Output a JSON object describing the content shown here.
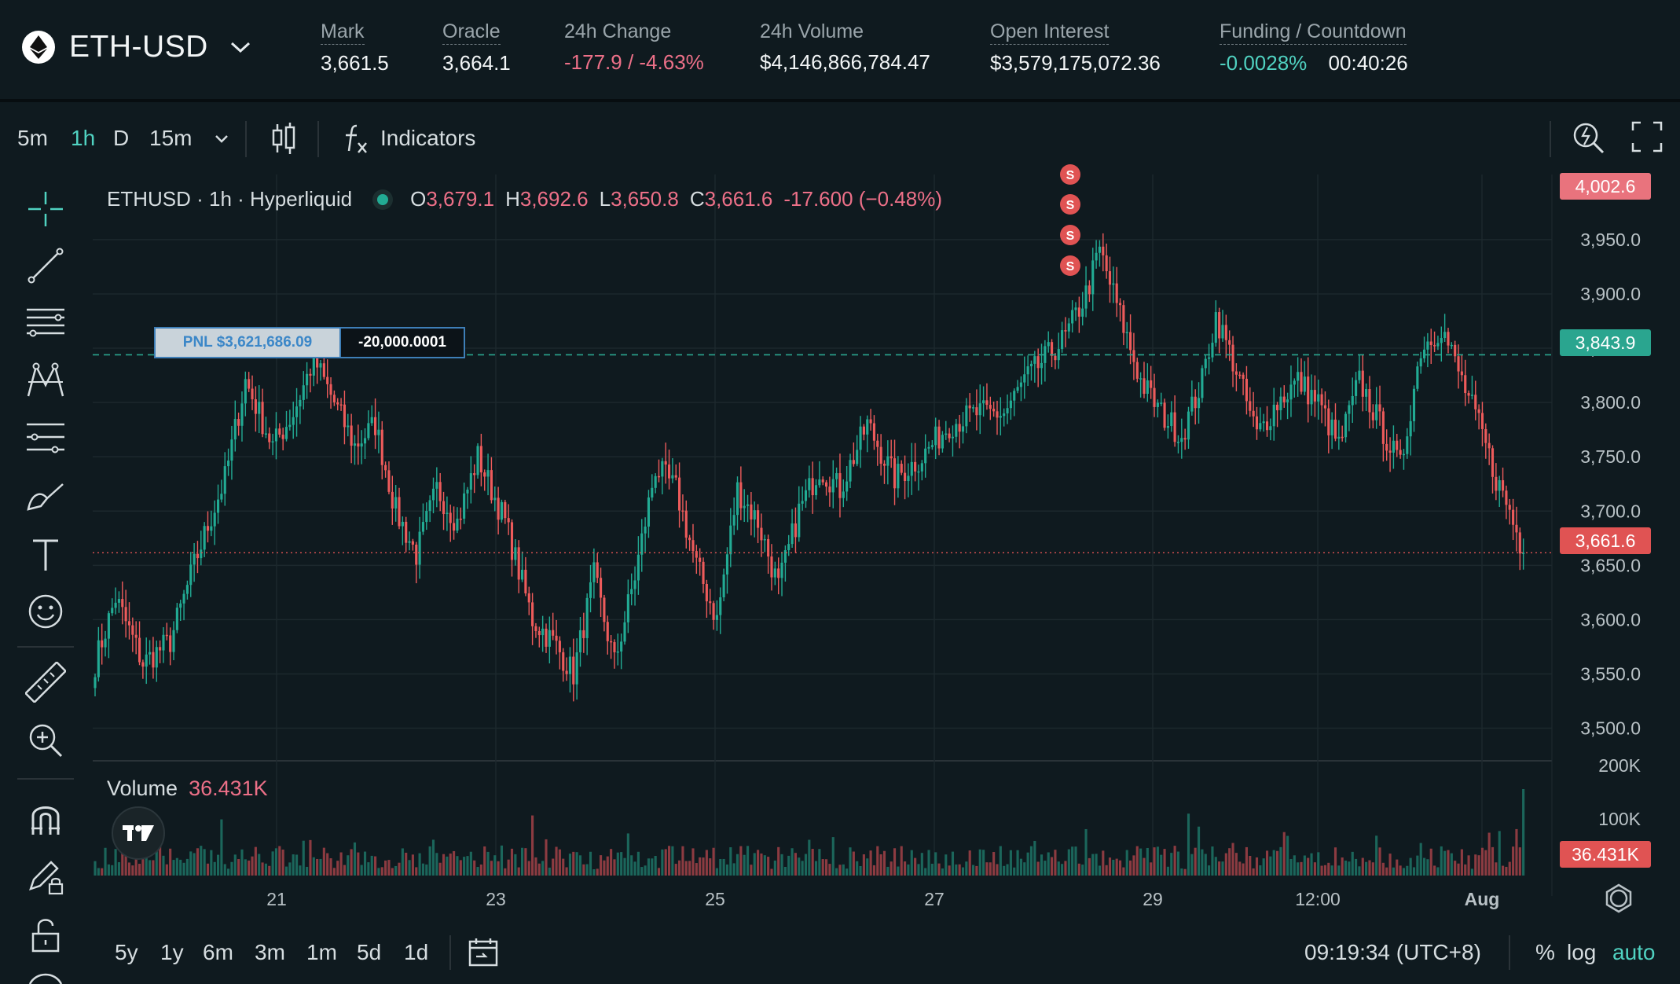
{
  "market": {
    "symbol": "ETH-USD",
    "icon": "ethereum-icon"
  },
  "stats": {
    "mark_label": "Mark",
    "mark_value": "3,661.5",
    "oracle_label": "Oracle",
    "oracle_value": "3,664.1",
    "change_label": "24h Change",
    "change_value": "-177.9 / -4.63%",
    "volume_label": "24h Volume",
    "volume_value": "$4,146,866,784.47",
    "oi_label": "Open Interest",
    "oi_value": "$3,579,175,072.36",
    "funding_label": "Funding / Countdown",
    "funding_value": "-0.0028%",
    "countdown_value": "00:40:26"
  },
  "toolbar": {
    "timeframes": [
      "5m",
      "1h",
      "D",
      "15m"
    ],
    "active_timeframe": "1h",
    "indicators_label": "Indicators"
  },
  "legend": {
    "title": "ETHUSD · 1h · Hyperliquid",
    "o_label": "O",
    "o_value": "3,679.1",
    "h_label": "H",
    "h_value": "3,692.6",
    "l_label": "L",
    "l_value": "3,650.8",
    "c_label": "C",
    "c_value": "3,661.6",
    "change": "-17.600 (−0.48%)"
  },
  "price_tags": {
    "top": "4,002.6",
    "position": "3,843.9",
    "last": "3,661.6",
    "volume": "36.431K"
  },
  "pnl": {
    "label": "PNL $3,621,686.09",
    "size": "-20,000.0001"
  },
  "volume_legend": {
    "label": "Volume",
    "value": "36.431K"
  },
  "bottom": {
    "ranges": [
      "5y",
      "1y",
      "6m",
      "3m",
      "1m",
      "5d",
      "1d"
    ],
    "time": "09:19:34 (UTC+8)",
    "percent_label": "%",
    "log_label": "log",
    "auto_label": "auto"
  },
  "colors": {
    "up": "#22ab94",
    "down": "#f23645",
    "bg": "#0f1a1f",
    "accent": "#50d2c1",
    "sell_marker": "#e05353"
  },
  "chart_data": {
    "type": "candlestick",
    "symbol": "ETHUSD",
    "interval": "1h",
    "ylim": [
      3470,
      4010
    ],
    "y_ticks": [
      3500,
      3550,
      3600,
      3650,
      3700,
      3750,
      3800,
      3850,
      3900,
      3950
    ],
    "y_tick_labels": [
      "3,500.0",
      "3,550.0",
      "3,600.0",
      "3,650.0",
      "3,700.0",
      "3,750.0",
      "3,800.0",
      "3,850.0",
      "3,900.0",
      "3,950.0"
    ],
    "x_labels": [
      "21",
      "23",
      "25",
      "27",
      "29",
      "12:00",
      "Aug"
    ],
    "position_price": 3843.9,
    "last_price": 3661.6,
    "sell_markers": [
      "S",
      "S",
      "S",
      "S"
    ],
    "volume_axis_labels": [
      "200K",
      "100K"
    ],
    "path_keypoints": [
      [
        0,
        3560
      ],
      [
        6,
        3620
      ],
      [
        14,
        3560
      ],
      [
        22,
        3580
      ],
      [
        30,
        3660
      ],
      [
        38,
        3730
      ],
      [
        44,
        3820
      ],
      [
        52,
        3760
      ],
      [
        58,
        3790
      ],
      [
        64,
        3840
      ],
      [
        70,
        3800
      ],
      [
        76,
        3760
      ],
      [
        82,
        3780
      ],
      [
        88,
        3700
      ],
      [
        94,
        3660
      ],
      [
        100,
        3720
      ],
      [
        106,
        3690
      ],
      [
        112,
        3750
      ],
      [
        120,
        3690
      ],
      [
        128,
        3600
      ],
      [
        134,
        3580
      ],
      [
        140,
        3550
      ],
      [
        146,
        3640
      ],
      [
        152,
        3560
      ],
      [
        158,
        3640
      ],
      [
        164,
        3740
      ],
      [
        170,
        3720
      ],
      [
        176,
        3650
      ],
      [
        182,
        3600
      ],
      [
        188,
        3720
      ],
      [
        194,
        3690
      ],
      [
        200,
        3630
      ],
      [
        206,
        3700
      ],
      [
        212,
        3740
      ],
      [
        218,
        3720
      ],
      [
        226,
        3780
      ],
      [
        234,
        3730
      ],
      [
        242,
        3750
      ],
      [
        250,
        3780
      ],
      [
        258,
        3790
      ],
      [
        266,
        3790
      ],
      [
        272,
        3820
      ],
      [
        278,
        3840
      ],
      [
        284,
        3860
      ],
      [
        290,
        3900
      ],
      [
        294,
        3940
      ],
      [
        300,
        3880
      ],
      [
        306,
        3820
      ],
      [
        312,
        3790
      ],
      [
        318,
        3770
      ],
      [
        324,
        3820
      ],
      [
        328,
        3880
      ],
      [
        334,
        3830
      ],
      [
        340,
        3770
      ],
      [
        346,
        3800
      ],
      [
        352,
        3820
      ],
      [
        358,
        3800
      ],
      [
        364,
        3760
      ],
      [
        370,
        3820
      ],
      [
        376,
        3780
      ],
      [
        382,
        3740
      ],
      [
        388,
        3850
      ],
      [
        394,
        3870
      ],
      [
        400,
        3820
      ],
      [
        406,
        3770
      ],
      [
        410,
        3730
      ],
      [
        414,
        3700
      ],
      [
        418,
        3661
      ]
    ]
  }
}
